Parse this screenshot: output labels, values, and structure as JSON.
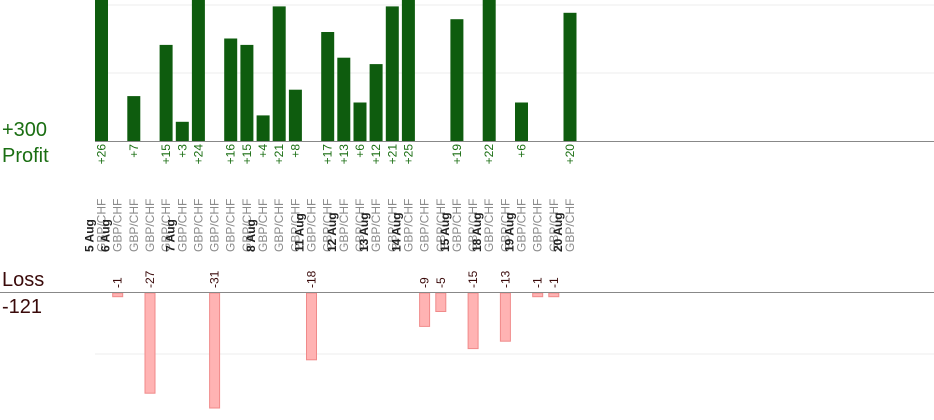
{
  "summary": {
    "profit_total": "+300",
    "profit_label": "Profit",
    "loss_label": "Loss",
    "loss_total": "-121"
  },
  "colors": {
    "profit_bar": "#0e5c0e",
    "profit_text": "#1a6e12",
    "loss_bar": "#ffb3b3",
    "loss_bar_stroke": "#f08a8a",
    "loss_text": "#3a0a0a",
    "date_text": "#222222",
    "pair_text": "#8a8a8a",
    "grid": "#ececec",
    "axis": "#888888"
  },
  "chart_data": {
    "type": "bar",
    "profit_scale_max": 26,
    "loss_scale_max": 27,
    "trades": [
      {
        "date": "5 Aug",
        "pair": "GBP/CHF",
        "value": 26,
        "label": "+26"
      },
      {
        "date": "6 Aug",
        "pair": "GBP/CHF",
        "value": -1,
        "label": "-1"
      },
      {
        "date": "",
        "pair": "GBP/CHF",
        "value": 7,
        "label": "+7"
      },
      {
        "date": "",
        "pair": "GBP/CHF",
        "value": -27,
        "label": "-27"
      },
      {
        "date": "",
        "pair": "GBP/CHF",
        "value": 15,
        "label": "+15"
      },
      {
        "date": "7 Aug",
        "pair": "GBP/CHF",
        "value": 3,
        "label": "+3"
      },
      {
        "date": "",
        "pair": "GBP/CHF",
        "value": 24,
        "label": "+24"
      },
      {
        "date": "",
        "pair": "GBP/CHF",
        "value": -31,
        "label": "-31"
      },
      {
        "date": "",
        "pair": "GBP/CHF",
        "value": 16,
        "label": "+16"
      },
      {
        "date": "",
        "pair": "GBP/CHF",
        "value": 15,
        "label": "+15"
      },
      {
        "date": "8 Aug",
        "pair": "GBP/CHF",
        "value": 4,
        "label": "+4"
      },
      {
        "date": "",
        "pair": "GBP/CHF",
        "value": 21,
        "label": "+21"
      },
      {
        "date": "",
        "pair": "GBP/CHF",
        "value": 8,
        "label": "+8"
      },
      {
        "date": "11 Aug",
        "pair": "GBP/CHF",
        "value": -18,
        "label": "-18"
      },
      {
        "date": "",
        "pair": "GBP/CHF",
        "value": 17,
        "label": "+17"
      },
      {
        "date": "12 Aug",
        "pair": "GBP/CHF",
        "value": 13,
        "label": "+13"
      },
      {
        "date": "",
        "pair": "GBP/CHF",
        "value": 6,
        "label": "+6"
      },
      {
        "date": "13 Aug",
        "pair": "GBP/CHF",
        "value": 12,
        "label": "+12"
      },
      {
        "date": "",
        "pair": "GBP/CHF",
        "value": 21,
        "label": "+21"
      },
      {
        "date": "14 Aug",
        "pair": "GBP/CHF",
        "value": 25,
        "label": "+25"
      },
      {
        "date": "",
        "pair": "GBP/CHF",
        "value": -9,
        "label": "-9"
      },
      {
        "date": "",
        "pair": "GBP/CHF",
        "value": -5,
        "label": "-5"
      },
      {
        "date": "15 Aug",
        "pair": "GBP/CHF",
        "value": 19,
        "label": "+19"
      },
      {
        "date": "",
        "pair": "GBP/CHF",
        "value": -15,
        "label": "-15"
      },
      {
        "date": "18 Aug",
        "pair": "GBP/CHF",
        "value": 22,
        "label": "+22"
      },
      {
        "date": "",
        "pair": "GBP/CHF",
        "value": -13,
        "label": "-13"
      },
      {
        "date": "19 Aug",
        "pair": "GBP/CHF",
        "value": 6,
        "label": "+6"
      },
      {
        "date": "",
        "pair": "GBP/CHF",
        "value": -1,
        "label": "-1"
      },
      {
        "date": "",
        "pair": "GBP/CHF",
        "value": -1,
        "label": "-1"
      },
      {
        "date": "20 Aug",
        "pair": "GBP/CHF",
        "value": 20,
        "label": "+20"
      }
    ]
  }
}
